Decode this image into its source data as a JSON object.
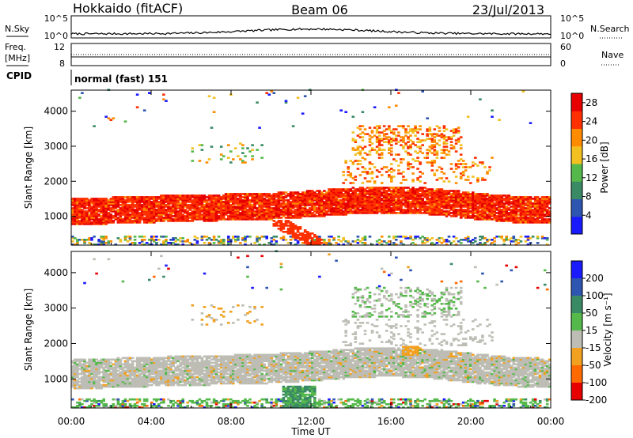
{
  "header": {
    "station": "Hokkaido (fitACF)",
    "beam": "Beam 06",
    "date": "23/Jul/2013"
  },
  "noise_panel": {
    "left_label": "N.Sky",
    "right_label": "N.Search",
    "left_ticks": [
      "10^5",
      "10^0"
    ],
    "right_ticks": [
      "10^5",
      "10^0"
    ],
    "scale": "log"
  },
  "freq_panel": {
    "left_label_1": "Freq.",
    "left_label_2": "[MHz]",
    "right_label": "Nave",
    "left_ticks": [
      "12",
      "8"
    ],
    "right_ticks": [
      "60",
      "0"
    ]
  },
  "cpid": {
    "label": "CPID",
    "mode": "normal (fast) 151"
  },
  "chart_data": [
    {
      "type": "heatmap",
      "name": "power",
      "ylabel": "Slant Range [km]",
      "xlabel": "Time UT",
      "xlim": [
        0,
        24
      ],
      "ylim": [
        180,
        4600
      ],
      "yticks": [
        "1000",
        "2000",
        "3000",
        "4000"
      ],
      "x_tick_labels": [
        "00:00",
        "04:00",
        "08:00",
        "12:00",
        "16:00",
        "20:00",
        "00:00"
      ],
      "colorbar": {
        "label": "Power [dB]",
        "ticks": [
          "4",
          "8",
          "12",
          "16",
          "20",
          "24",
          "28"
        ],
        "range": [
          0,
          30
        ],
        "colors": [
          "#1a1aff",
          "#2e55b0",
          "#3a8a66",
          "#55b84a",
          "#f2c020",
          "#ff8c00",
          "#ff3000",
          "#e60000"
        ]
      },
      "bands": [
        {
          "t": [
            0,
            24
          ],
          "r": [
            850,
            1350
          ],
          "level": "high"
        },
        {
          "t": [
            10,
            24
          ],
          "r": [
            1300,
            1800
          ],
          "level": "high"
        },
        {
          "t": [
            14,
            19
          ],
          "r": [
            2800,
            3500
          ],
          "level": "medium"
        },
        {
          "t": [
            6,
            9
          ],
          "r": [
            2600,
            3000
          ],
          "level": "low"
        }
      ]
    },
    {
      "type": "heatmap",
      "name": "velocity",
      "ylabel": "Slant Range [km]",
      "xlabel": "Time UT",
      "xlim": [
        0,
        24
      ],
      "ylim": [
        180,
        4600
      ],
      "yticks": [
        "1000",
        "2000",
        "3000",
        "4000"
      ],
      "x_tick_labels": [
        "00:00",
        "04:00",
        "08:00",
        "12:00",
        "16:00",
        "20:00",
        "00:00"
      ],
      "colorbar": {
        "label": "Velocity [m s⁻¹]",
        "ticks": [
          "200",
          "100",
          "50",
          "15",
          "-15",
          "-50",
          "-100",
          "-200"
        ],
        "colors": [
          "#1a1aff",
          "#2e55b0",
          "#3a8a66",
          "#55b84a",
          "#bdbdb5",
          "#f2a020",
          "#ff6a00",
          "#e60000"
        ]
      },
      "bands": [
        {
          "t": [
            0,
            24
          ],
          "r": [
            700,
            1600
          ],
          "level": "near-zero"
        },
        {
          "t": [
            10.5,
            12.5
          ],
          "r": [
            200,
            800
          ],
          "level": "positive"
        },
        {
          "t": [
            16.5,
            17.3
          ],
          "r": [
            1650,
            1900
          ],
          "level": "negative"
        }
      ]
    }
  ],
  "x_axis": {
    "label": "Time UT",
    "tick_labels": [
      "00:00",
      "04:00",
      "08:00",
      "12:00",
      "16:00",
      "20:00",
      "00:00"
    ]
  }
}
